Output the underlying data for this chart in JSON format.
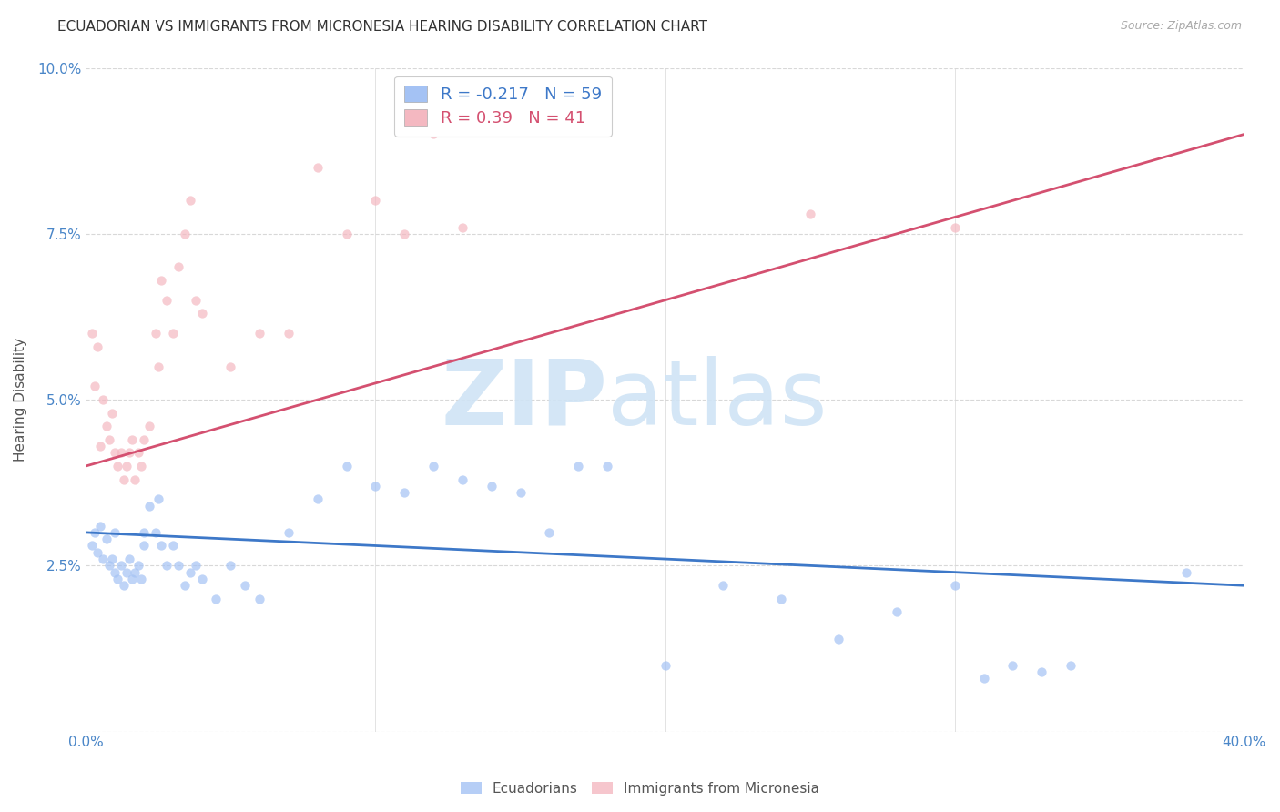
{
  "title": "ECUADORIAN VS IMMIGRANTS FROM MICRONESIA HEARING DISABILITY CORRELATION CHART",
  "source": "Source: ZipAtlas.com",
  "ylabel_label": "Hearing Disability",
  "xlim": [
    0.0,
    0.4
  ],
  "ylim": [
    0.0,
    0.1
  ],
  "xticks": [
    0.0,
    0.1,
    0.2,
    0.3,
    0.4
  ],
  "yticks": [
    0.0,
    0.025,
    0.05,
    0.075,
    0.1
  ],
  "ytick_labels": [
    "",
    "2.5%",
    "5.0%",
    "7.5%",
    "10.0%"
  ],
  "xtick_labels": [
    "0.0%",
    "",
    "",
    "",
    "40.0%"
  ],
  "blue_R": -0.217,
  "blue_N": 59,
  "pink_R": 0.39,
  "pink_N": 41,
  "blue_color": "#a4c2f4",
  "pink_color": "#f4b8c1",
  "blue_line_color": "#3d78c8",
  "pink_line_color": "#d45070",
  "background_color": "#ffffff",
  "grid_color": "#d8d8d8",
  "watermark_color": "#d0e4f5",
  "blue_line_y0": 0.03,
  "blue_line_y1": 0.022,
  "pink_line_y0": 0.04,
  "pink_line_y1": 0.09,
  "blue_scatter_x": [
    0.002,
    0.003,
    0.004,
    0.005,
    0.006,
    0.007,
    0.008,
    0.009,
    0.01,
    0.01,
    0.011,
    0.012,
    0.013,
    0.014,
    0.015,
    0.016,
    0.017,
    0.018,
    0.019,
    0.02,
    0.02,
    0.022,
    0.024,
    0.025,
    0.026,
    0.028,
    0.03,
    0.032,
    0.034,
    0.036,
    0.038,
    0.04,
    0.045,
    0.05,
    0.055,
    0.06,
    0.07,
    0.08,
    0.09,
    0.1,
    0.11,
    0.12,
    0.13,
    0.14,
    0.15,
    0.16,
    0.17,
    0.18,
    0.2,
    0.22,
    0.24,
    0.26,
    0.28,
    0.3,
    0.31,
    0.32,
    0.33,
    0.34,
    0.38
  ],
  "blue_scatter_y": [
    0.028,
    0.03,
    0.027,
    0.031,
    0.026,
    0.029,
    0.025,
    0.026,
    0.03,
    0.024,
    0.023,
    0.025,
    0.022,
    0.024,
    0.026,
    0.023,
    0.024,
    0.025,
    0.023,
    0.028,
    0.03,
    0.034,
    0.03,
    0.035,
    0.028,
    0.025,
    0.028,
    0.025,
    0.022,
    0.024,
    0.025,
    0.023,
    0.02,
    0.025,
    0.022,
    0.02,
    0.03,
    0.035,
    0.04,
    0.037,
    0.036,
    0.04,
    0.038,
    0.037,
    0.036,
    0.03,
    0.04,
    0.04,
    0.01,
    0.022,
    0.02,
    0.014,
    0.018,
    0.022,
    0.008,
    0.01,
    0.009,
    0.01,
    0.024
  ],
  "pink_scatter_x": [
    0.002,
    0.003,
    0.004,
    0.005,
    0.006,
    0.007,
    0.008,
    0.009,
    0.01,
    0.011,
    0.012,
    0.013,
    0.014,
    0.015,
    0.016,
    0.017,
    0.018,
    0.019,
    0.02,
    0.022,
    0.024,
    0.025,
    0.026,
    0.028,
    0.03,
    0.032,
    0.034,
    0.036,
    0.038,
    0.04,
    0.05,
    0.06,
    0.07,
    0.08,
    0.09,
    0.1,
    0.11,
    0.12,
    0.13,
    0.25,
    0.3
  ],
  "pink_scatter_y": [
    0.06,
    0.052,
    0.058,
    0.043,
    0.05,
    0.046,
    0.044,
    0.048,
    0.042,
    0.04,
    0.042,
    0.038,
    0.04,
    0.042,
    0.044,
    0.038,
    0.042,
    0.04,
    0.044,
    0.046,
    0.06,
    0.055,
    0.068,
    0.065,
    0.06,
    0.07,
    0.075,
    0.08,
    0.065,
    0.063,
    0.055,
    0.06,
    0.06,
    0.085,
    0.075,
    0.08,
    0.075,
    0.09,
    0.076,
    0.078,
    0.076
  ],
  "blue_marker_size": 55,
  "pink_marker_size": 55,
  "legend_fontsize": 13,
  "title_fontsize": 11,
  "axis_label_fontsize": 11,
  "tick_fontsize": 11,
  "tick_color": "#4a86c8"
}
